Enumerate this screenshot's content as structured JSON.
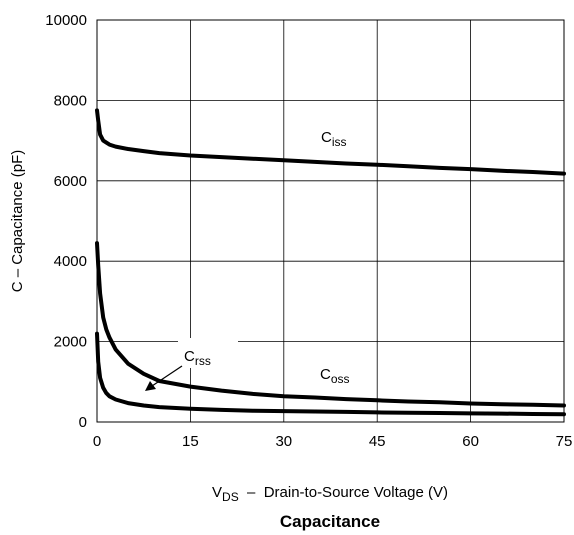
{
  "chart_data": {
    "type": "line",
    "title": "Capacitance",
    "xlabel": {
      "main": "V",
      "sub": "DS",
      "rest": "  –  Drain-to-Source Voltage (V)"
    },
    "ylabel": "C  –  Capacitance (pF)",
    "xlim": [
      0,
      75
    ],
    "ylim": [
      0,
      10000
    ],
    "xticks": [
      0,
      15,
      30,
      45,
      60,
      75
    ],
    "yticks": [
      0,
      2000,
      4000,
      6000,
      8000,
      10000
    ],
    "grid": true,
    "series": [
      {
        "name": "Ciss",
        "label": {
          "main": "C",
          "sub": "iss"
        },
        "x": [
          0,
          0.2,
          0.5,
          1,
          1.5,
          2,
          3,
          5,
          7.5,
          10,
          15,
          20,
          25,
          30,
          35,
          40,
          45,
          50,
          55,
          60,
          65,
          70,
          75
        ],
        "y": [
          7750,
          7500,
          7150,
          7000,
          6950,
          6900,
          6850,
          6790,
          6740,
          6690,
          6630,
          6590,
          6550,
          6510,
          6470,
          6430,
          6400,
          6360,
          6320,
          6290,
          6250,
          6220,
          6180
        ]
      },
      {
        "name": "Coss",
        "label": {
          "main": "C",
          "sub": "oss"
        },
        "x": [
          0,
          0.2,
          0.5,
          1,
          1.5,
          2,
          3,
          5,
          7.5,
          10,
          15,
          20,
          25,
          30,
          35,
          40,
          45,
          50,
          55,
          60,
          65,
          70,
          75
        ],
        "y": [
          4450,
          3900,
          3200,
          2600,
          2300,
          2100,
          1800,
          1450,
          1200,
          1020,
          880,
          780,
          700,
          640,
          610,
          570,
          540,
          510,
          490,
          460,
          440,
          430,
          410
        ]
      },
      {
        "name": "Crss",
        "label": {
          "main": "C",
          "sub": "rss"
        },
        "x": [
          0,
          0.2,
          0.5,
          1,
          1.5,
          2,
          3,
          5,
          7.5,
          10,
          15,
          20,
          25,
          30,
          35,
          40,
          45,
          50,
          55,
          60,
          65,
          70,
          75
        ],
        "y": [
          2200,
          1500,
          1100,
          850,
          720,
          640,
          560,
          470,
          410,
          370,
          330,
          300,
          280,
          270,
          260,
          250,
          240,
          230,
          225,
          215,
          210,
          200,
          195
        ]
      }
    ]
  }
}
